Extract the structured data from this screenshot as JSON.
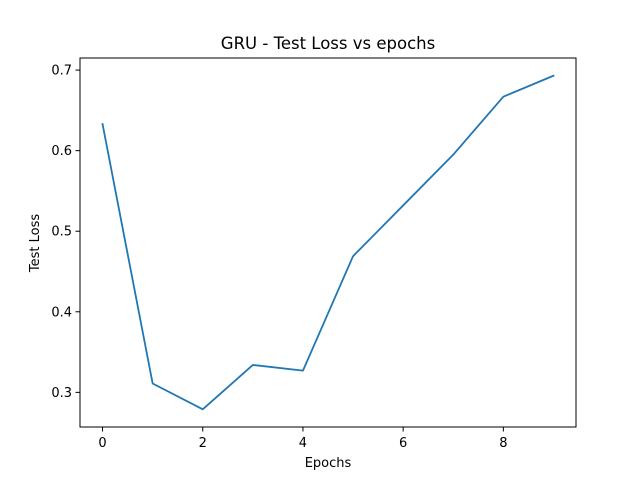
{
  "chart_data": {
    "type": "line",
    "title": "GRU - Test Loss vs epochs",
    "xlabel": "Epochs",
    "ylabel": "Test Loss",
    "xlim": [
      -0.45,
      9.45
    ],
    "ylim": [
      0.257,
      0.715
    ],
    "x_ticks": [
      0,
      2,
      4,
      6,
      8
    ],
    "x_tick_labels": [
      "0",
      "2",
      "4",
      "6",
      "8"
    ],
    "y_ticks": [
      0.3,
      0.4,
      0.5,
      0.6,
      0.7
    ],
    "y_tick_labels": [
      "0.3",
      "0.4",
      "0.5",
      "0.6",
      "0.7"
    ],
    "grid": false,
    "series": [
      {
        "x": [
          0,
          1,
          2,
          3,
          4,
          5,
          6,
          7,
          8,
          9
        ],
        "values": [
          0.633,
          0.311,
          0.279,
          0.334,
          0.327,
          0.469,
          0.532,
          0.595,
          0.667,
          0.693
        ],
        "color": "#1f77b4"
      }
    ]
  }
}
